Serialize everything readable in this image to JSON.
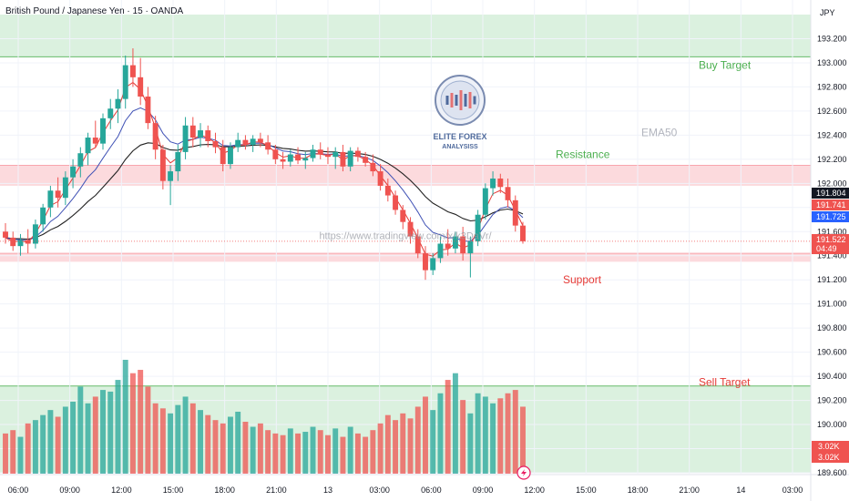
{
  "header": {
    "title": "British Pound / Japanese Yen · 15 · OANDA",
    "currency": "JPY"
  },
  "watermark": {
    "url": "https://www.tradingview.com/x/k3DaVr/",
    "logo_line1": "ELITE FOREX",
    "logo_line2": "ANALYSISS"
  },
  "annotations": {
    "buy_target": "Buy Target",
    "ema": "EMA50",
    "resistance": "Resistance",
    "support": "Support",
    "sell_target": "Sell Target"
  },
  "colors": {
    "bull": "#26a69a",
    "bear": "#ef5350",
    "green_zone": "#d7f0dc",
    "red_zone": "#fcd6d9",
    "ema_fast": "#e53935",
    "ema_mid": "#3f51b5",
    "ema_slow": "#222222"
  },
  "chart_data": {
    "type": "candlestick",
    "title": "British Pound / Japanese Yen · 15 · OANDA",
    "ylabel": "JPY",
    "ylim": [
      189.6,
      193.4
    ],
    "y_ticks": [
      "193.200",
      "193.000",
      "192.800",
      "192.600",
      "192.400",
      "192.200",
      "192.000",
      "191.800",
      "191.600",
      "191.400",
      "191.200",
      "191.000",
      "190.800",
      "190.600",
      "190.400",
      "190.200",
      "190.000",
      "189.800",
      "189.600"
    ],
    "x_ticks": [
      "06:00",
      "09:00",
      "12:00",
      "15:00",
      "18:00",
      "21:00",
      "13",
      "03:00",
      "06:00",
      "09:00",
      "12:00",
      "15:00",
      "18:00",
      "21:00",
      "14",
      "03:00"
    ],
    "zones": [
      {
        "label": "Buy Target",
        "from": 193.05,
        "to": 193.4,
        "kind": "green"
      },
      {
        "label": "Resistance",
        "from": 191.98,
        "to": 192.15,
        "kind": "red"
      },
      {
        "label": "Support",
        "from": 191.35,
        "to": 191.42,
        "kind": "red"
      },
      {
        "label": "Sell Target",
        "from": 189.6,
        "to": 190.32,
        "kind": "green"
      }
    ],
    "price_labels": [
      {
        "value": "191.804",
        "bg": "#131722"
      },
      {
        "value": "191.741",
        "bg": "#ef5350"
      },
      {
        "value": "191.725",
        "bg": "#2962ff"
      },
      {
        "value": "191.522",
        "bg": "#ef5350",
        "sub": "04:49"
      }
    ],
    "volume_labels": [
      "3.02K",
      "3.02K"
    ],
    "candles": [
      {
        "o": 191.6,
        "h": 191.67,
        "l": 191.5,
        "c": 191.55
      },
      {
        "o": 191.55,
        "h": 191.6,
        "l": 191.44,
        "c": 191.48
      },
      {
        "o": 191.48,
        "h": 191.58,
        "l": 191.4,
        "c": 191.53
      },
      {
        "o": 191.53,
        "h": 191.62,
        "l": 191.42,
        "c": 191.5
      },
      {
        "o": 191.5,
        "h": 191.7,
        "l": 191.46,
        "c": 191.66
      },
      {
        "o": 191.66,
        "h": 191.83,
        "l": 191.6,
        "c": 191.8
      },
      {
        "o": 191.8,
        "h": 191.98,
        "l": 191.72,
        "c": 191.94
      },
      {
        "o": 191.94,
        "h": 192.05,
        "l": 191.8,
        "c": 191.88
      },
      {
        "o": 191.88,
        "h": 192.1,
        "l": 191.82,
        "c": 192.05
      },
      {
        "o": 192.05,
        "h": 192.2,
        "l": 191.96,
        "c": 192.14
      },
      {
        "o": 192.14,
        "h": 192.3,
        "l": 192.05,
        "c": 192.25
      },
      {
        "o": 192.25,
        "h": 192.42,
        "l": 192.15,
        "c": 192.38
      },
      {
        "o": 192.38,
        "h": 192.52,
        "l": 192.3,
        "c": 192.33
      },
      {
        "o": 192.33,
        "h": 192.58,
        "l": 192.28,
        "c": 192.54
      },
      {
        "o": 192.54,
        "h": 192.7,
        "l": 192.45,
        "c": 192.62
      },
      {
        "o": 192.62,
        "h": 192.78,
        "l": 192.5,
        "c": 192.7
      },
      {
        "o": 192.7,
        "h": 193.06,
        "l": 192.62,
        "c": 192.98
      },
      {
        "o": 192.98,
        "h": 193.12,
        "l": 192.8,
        "c": 192.88
      },
      {
        "o": 192.88,
        "h": 193.04,
        "l": 192.65,
        "c": 192.72
      },
      {
        "o": 192.72,
        "h": 192.8,
        "l": 192.45,
        "c": 192.5
      },
      {
        "o": 192.5,
        "h": 192.56,
        "l": 192.2,
        "c": 192.28
      },
      {
        "o": 192.28,
        "h": 192.32,
        "l": 191.95,
        "c": 192.02
      },
      {
        "o": 192.02,
        "h": 192.15,
        "l": 191.82,
        "c": 192.1
      },
      {
        "o": 192.1,
        "h": 192.32,
        "l": 192.02,
        "c": 192.26
      },
      {
        "o": 192.26,
        "h": 192.55,
        "l": 192.2,
        "c": 192.48
      },
      {
        "o": 192.48,
        "h": 192.55,
        "l": 192.3,
        "c": 192.38
      },
      {
        "o": 192.38,
        "h": 192.5,
        "l": 192.3,
        "c": 192.44
      },
      {
        "o": 192.44,
        "h": 192.48,
        "l": 192.3,
        "c": 192.35
      },
      {
        "o": 192.35,
        "h": 192.42,
        "l": 192.25,
        "c": 192.3
      },
      {
        "o": 192.3,
        "h": 192.36,
        "l": 192.1,
        "c": 192.16
      },
      {
        "o": 192.16,
        "h": 192.34,
        "l": 192.12,
        "c": 192.3
      },
      {
        "o": 192.3,
        "h": 192.42,
        "l": 192.26,
        "c": 192.36
      },
      {
        "o": 192.36,
        "h": 192.4,
        "l": 192.28,
        "c": 192.32
      },
      {
        "o": 192.32,
        "h": 192.4,
        "l": 192.26,
        "c": 192.37
      },
      {
        "o": 192.37,
        "h": 192.42,
        "l": 192.3,
        "c": 192.34
      },
      {
        "o": 192.34,
        "h": 192.4,
        "l": 192.24,
        "c": 192.28
      },
      {
        "o": 192.28,
        "h": 192.32,
        "l": 192.16,
        "c": 192.2
      },
      {
        "o": 192.2,
        "h": 192.26,
        "l": 192.12,
        "c": 192.18
      },
      {
        "o": 192.18,
        "h": 192.28,
        "l": 192.14,
        "c": 192.24
      },
      {
        "o": 192.24,
        "h": 192.3,
        "l": 192.16,
        "c": 192.19
      },
      {
        "o": 192.19,
        "h": 192.26,
        "l": 192.12,
        "c": 192.21
      },
      {
        "o": 192.21,
        "h": 192.32,
        "l": 192.18,
        "c": 192.28
      },
      {
        "o": 192.28,
        "h": 192.34,
        "l": 192.2,
        "c": 192.24
      },
      {
        "o": 192.24,
        "h": 192.3,
        "l": 192.16,
        "c": 192.22
      },
      {
        "o": 192.22,
        "h": 192.3,
        "l": 192.12,
        "c": 192.26
      },
      {
        "o": 192.26,
        "h": 192.32,
        "l": 192.1,
        "c": 192.14
      },
      {
        "o": 192.14,
        "h": 192.3,
        "l": 192.1,
        "c": 192.27
      },
      {
        "o": 192.27,
        "h": 192.3,
        "l": 192.18,
        "c": 192.22
      },
      {
        "o": 192.22,
        "h": 192.26,
        "l": 192.14,
        "c": 192.17
      },
      {
        "o": 192.17,
        "h": 192.24,
        "l": 192.06,
        "c": 192.1
      },
      {
        "o": 192.1,
        "h": 192.16,
        "l": 191.94,
        "c": 191.98
      },
      {
        "o": 191.98,
        "h": 192.04,
        "l": 191.85,
        "c": 191.9
      },
      {
        "o": 191.9,
        "h": 191.94,
        "l": 191.74,
        "c": 191.78
      },
      {
        "o": 191.78,
        "h": 191.82,
        "l": 191.62,
        "c": 191.68
      },
      {
        "o": 191.68,
        "h": 191.72,
        "l": 191.5,
        "c": 191.56
      },
      {
        "o": 191.56,
        "h": 191.62,
        "l": 191.38,
        "c": 191.42
      },
      {
        "o": 191.42,
        "h": 191.48,
        "l": 191.2,
        "c": 191.28
      },
      {
        "o": 191.28,
        "h": 191.42,
        "l": 191.24,
        "c": 191.38
      },
      {
        "o": 191.38,
        "h": 191.56,
        "l": 191.34,
        "c": 191.5
      },
      {
        "o": 191.5,
        "h": 191.62,
        "l": 191.4,
        "c": 191.46
      },
      {
        "o": 191.46,
        "h": 191.6,
        "l": 191.42,
        "c": 191.56
      },
      {
        "o": 191.56,
        "h": 191.64,
        "l": 191.36,
        "c": 191.42
      },
      {
        "o": 191.42,
        "h": 191.56,
        "l": 191.22,
        "c": 191.52
      },
      {
        "o": 191.52,
        "h": 191.78,
        "l": 191.48,
        "c": 191.74
      },
      {
        "o": 191.74,
        "h": 192.0,
        "l": 191.7,
        "c": 191.96
      },
      {
        "o": 191.96,
        "h": 192.1,
        "l": 191.9,
        "c": 192.04
      },
      {
        "o": 192.04,
        "h": 192.08,
        "l": 191.92,
        "c": 191.97
      },
      {
        "o": 191.97,
        "h": 192.04,
        "l": 191.8,
        "c": 191.86
      },
      {
        "o": 191.86,
        "h": 191.9,
        "l": 191.6,
        "c": 191.65
      },
      {
        "o": 191.65,
        "h": 191.68,
        "l": 191.5,
        "c": 191.52
      }
    ],
    "volumes": [
      120,
      130,
      110,
      150,
      160,
      175,
      190,
      170,
      200,
      215,
      260,
      210,
      230,
      250,
      245,
      280,
      340,
      300,
      310,
      260,
      210,
      195,
      180,
      205,
      230,
      210,
      190,
      175,
      160,
      150,
      170,
      185,
      155,
      140,
      150,
      130,
      120,
      115,
      135,
      120,
      125,
      140,
      130,
      115,
      135,
      110,
      140,
      120,
      110,
      130,
      150,
      175,
      160,
      180,
      165,
      200,
      230,
      190,
      240,
      280,
      300,
      220,
      180,
      240,
      230,
      210,
      225,
      240,
      250,
      200
    ]
  }
}
